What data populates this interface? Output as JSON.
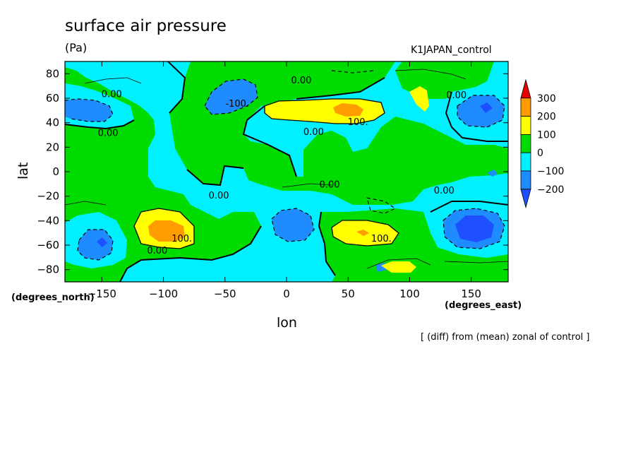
{
  "header": {
    "title": "surface air pressure",
    "units": "(Pa)",
    "source": "K1JAPAN_control"
  },
  "note": "[ (diff) from (mean) zonal of control ]",
  "chart_data": {
    "type": "heatmap",
    "title": "surface air pressure",
    "subtitle": "(Pa)",
    "xlabel": "lon",
    "ylabel": "lat",
    "x_units": "(degrees_east)",
    "y_units": "(degrees_north)",
    "xlim": [
      -180,
      180
    ],
    "ylim": [
      -90,
      90
    ],
    "x_ticks": [
      -150,
      -100,
      -50,
      0,
      50,
      100,
      150
    ],
    "y_ticks": [
      -80,
      -60,
      -40,
      -20,
      0,
      20,
      40,
      60,
      80
    ],
    "colorbar": {
      "levels": [
        300,
        200,
        100,
        0,
        -100,
        -200
      ],
      "colors": [
        "#e60000",
        "#ff9d00",
        "#ffff00",
        "#00dc00",
        "#00f0ff",
        "#1e8cff",
        "#1e50ff"
      ]
    },
    "contour_labels": [
      {
        "text": "0.00",
        "lon": -142,
        "lat": 61
      },
      {
        "text": "0.00",
        "lon": -145,
        "lat": 29
      },
      {
        "text": "-100.",
        "lon": -40,
        "lat": 53
      },
      {
        "text": "0.00",
        "lon": 12,
        "lat": 72
      },
      {
        "text": "100.",
        "lon": 58,
        "lat": 38
      },
      {
        "text": "0.00",
        "lon": 22,
        "lat": 30
      },
      {
        "text": "0.00",
        "lon": 138,
        "lat": 60
      },
      {
        "text": "0.00",
        "lon": -55,
        "lat": -22
      },
      {
        "text": "0.00",
        "lon": 35,
        "lat": -13
      },
      {
        "text": "0.00",
        "lon": 128,
        "lat": -18
      },
      {
        "text": "100.",
        "lon": -85,
        "lat": -57
      },
      {
        "text": "0.00",
        "lon": -105,
        "lat": -67
      },
      {
        "text": "100.",
        "lon": 77,
        "lat": -57
      }
    ]
  }
}
